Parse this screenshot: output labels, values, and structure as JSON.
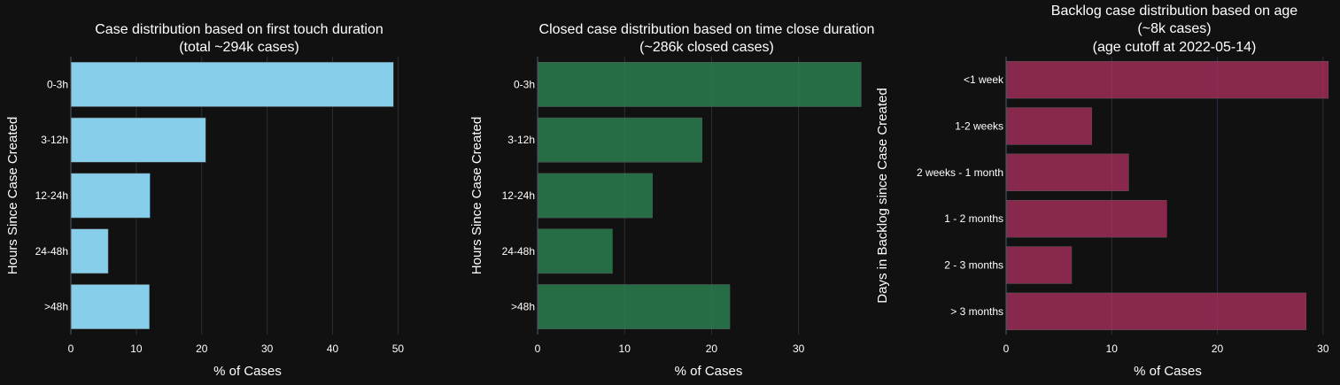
{
  "theme": {
    "background": "#111111",
    "grid_color": "#2e2e3c",
    "text_color": "#ffffff"
  },
  "chart_data": [
    {
      "type": "bar",
      "orientation": "horizontal",
      "title_lines": [
        "Case distribution based on first touch duration",
        "(total ~294k cases)"
      ],
      "xlabel": "% of Cases",
      "ylabel": "Hours Since Case Created",
      "categories": [
        "0-3h",
        "3-12h",
        "12-24h",
        "24-48h",
        ">48h"
      ],
      "values": [
        49.3,
        20.6,
        12.1,
        5.7,
        12.0
      ],
      "xlim": [
        0,
        54
      ],
      "xticks": [
        0,
        10,
        20,
        30,
        40,
        50
      ],
      "grid": true,
      "color": "#87ceeb",
      "opacity": 1
    },
    {
      "type": "bar",
      "orientation": "horizontal",
      "title_lines": [
        "Closed case distribution based on time close duration",
        "(~286k closed cases)"
      ],
      "xlabel": "% of Cases",
      "ylabel": "Hours Since Case Created",
      "categories": [
        "0-3h",
        "3-12h",
        "12-24h",
        "24-48h",
        ">48h"
      ],
      "values": [
        37.2,
        18.9,
        13.2,
        8.6,
        22.1
      ],
      "xlim": [
        0,
        39.3
      ],
      "xticks": [
        0,
        10,
        20,
        30
      ],
      "grid": true,
      "color": "#2e8b57",
      "opacity": 0.75
    },
    {
      "type": "bar",
      "orientation": "horizontal",
      "title_lines": [
        "Backlog case distribution based on age",
        "(~8k cases)",
        "(age cutoff at 2022-05-14)"
      ],
      "xlabel": "% of Cases",
      "ylabel": "Days in Backlog since Case Created",
      "categories": [
        "<1 week",
        "1-2 weeks",
        "2 weeks - 1 month",
        "1 - 2 months",
        "2 - 3 months",
        "> 3 months"
      ],
      "values": [
        30.5,
        8.1,
        11.6,
        15.2,
        6.2,
        28.4
      ],
      "xlim": [
        0,
        30.6
      ],
      "xticks": [
        0,
        10,
        20,
        30
      ],
      "grid": true,
      "color": "#b03060",
      "opacity": 0.75
    }
  ]
}
